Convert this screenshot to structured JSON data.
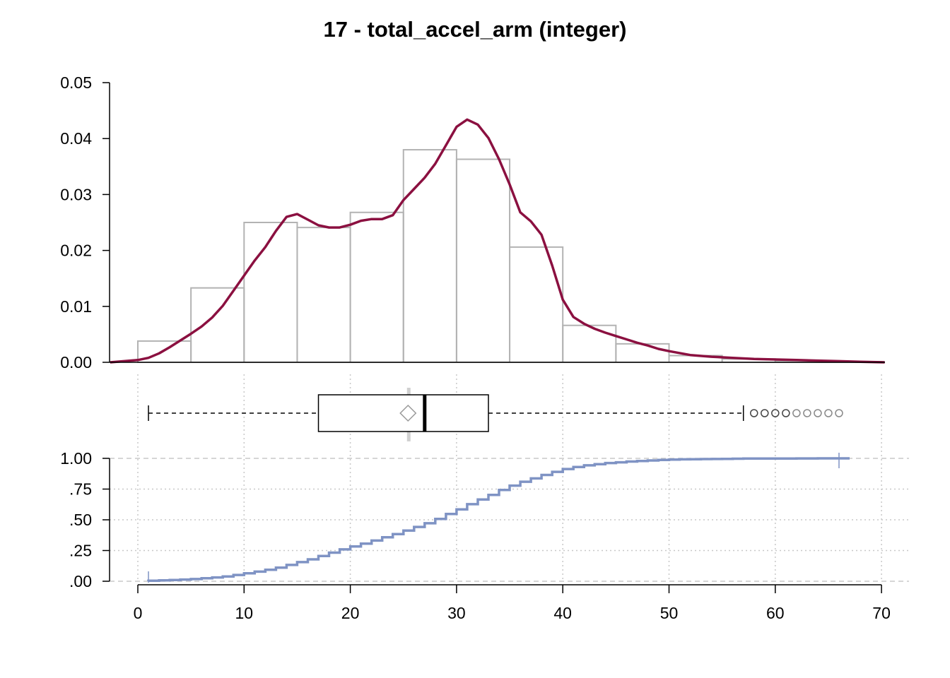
{
  "colors": {
    "density": "#8b1040",
    "histogram": "#b3b3b3",
    "ecdf": "#7f93c4",
    "grid": "#c8c8c8",
    "axis": "#000000",
    "mean_marker": "#999999"
  },
  "chart_data": {
    "type": "histogram",
    "title": "17 - total_accel_arm (integer)",
    "x_axis": {
      "range": [
        -2.6,
        70.5
      ],
      "ticks": [
        0,
        10,
        20,
        30,
        40,
        50,
        60,
        70
      ]
    },
    "histogram": {
      "ylim": [
        0,
        0.05
      ],
      "y_ticks": [
        "0.00",
        "0.01",
        "0.02",
        "0.03",
        "0.04",
        "0.05"
      ],
      "bin_width": 5,
      "bins": [
        {
          "start": 0,
          "end": 5,
          "density": 0.0038
        },
        {
          "start": 5,
          "end": 10,
          "density": 0.0133
        },
        {
          "start": 10,
          "end": 15,
          "density": 0.025
        },
        {
          "start": 15,
          "end": 20,
          "density": 0.0241
        },
        {
          "start": 20,
          "end": 25,
          "density": 0.0268
        },
        {
          "start": 25,
          "end": 30,
          "density": 0.038
        },
        {
          "start": 30,
          "end": 35,
          "density": 0.0363
        },
        {
          "start": 35,
          "end": 40,
          "density": 0.0206
        },
        {
          "start": 40,
          "end": 45,
          "density": 0.0066
        },
        {
          "start": 45,
          "end": 50,
          "density": 0.0033
        },
        {
          "start": 50,
          "end": 55,
          "density": 0.0012
        },
        {
          "start": 55,
          "end": 60,
          "density": 0.0006
        },
        {
          "start": 60,
          "end": 65,
          "density": 0.0003
        },
        {
          "start": 65,
          "end": 70,
          "density": 0.0001
        }
      ]
    },
    "density_curve": {
      "x": [
        -2.6,
        0,
        1,
        2,
        3,
        4,
        5,
        6,
        7,
        8,
        9,
        10,
        11,
        12,
        13,
        14,
        15,
        16,
        17,
        18,
        19,
        20,
        21,
        22,
        23,
        24,
        25,
        26,
        27,
        28,
        29,
        30,
        31,
        32,
        33,
        34,
        35,
        36,
        37,
        38,
        39,
        40,
        41,
        42,
        43,
        44,
        45,
        46,
        47,
        48,
        49,
        50,
        52,
        54,
        56,
        58,
        60,
        62,
        64,
        66,
        68,
        70.3
      ],
      "y": [
        0,
        0.0004,
        0.0008,
        0.0016,
        0.0027,
        0.0039,
        0.0051,
        0.0064,
        0.008,
        0.0101,
        0.0128,
        0.0155,
        0.0182,
        0.0206,
        0.0235,
        0.026,
        0.0265,
        0.0255,
        0.0245,
        0.0241,
        0.0241,
        0.0246,
        0.0253,
        0.0256,
        0.0256,
        0.0263,
        0.029,
        0.031,
        0.033,
        0.0355,
        0.0388,
        0.0421,
        0.0434,
        0.0425,
        0.0401,
        0.0363,
        0.0318,
        0.0268,
        0.0252,
        0.0228,
        0.0173,
        0.0112,
        0.0081,
        0.0069,
        0.006,
        0.0053,
        0.0047,
        0.0041,
        0.0035,
        0.003,
        0.0024,
        0.002,
        0.0013,
        0.001,
        0.0008,
        0.0006,
        0.0005,
        0.0004,
        0.0003,
        0.0002,
        0.0001,
        0
      ]
    },
    "boxplot": {
      "whisker_low": 1,
      "q1": 17,
      "median": 27,
      "q3": 33,
      "whisker_high": 57,
      "mean": 25.5,
      "outliers": [
        58,
        59,
        60,
        61,
        62,
        63,
        64,
        65,
        66
      ]
    },
    "ecdf": {
      "ylim": [
        0,
        1
      ],
      "y_ticks": [
        {
          "value": 0,
          "label": ".00"
        },
        {
          "value": 0.25,
          "label": ".25"
        },
        {
          "value": 0.5,
          "label": ".50"
        },
        {
          "value": 0.75,
          "label": ".75"
        },
        {
          "value": 1,
          "label": "1.00"
        }
      ],
      "x": [
        1,
        2,
        3,
        4,
        5,
        6,
        7,
        8,
        9,
        10,
        11,
        12,
        13,
        14,
        15,
        16,
        17,
        18,
        19,
        20,
        21,
        22,
        23,
        24,
        25,
        26,
        27,
        28,
        29,
        30,
        31,
        32,
        33,
        34,
        35,
        36,
        37,
        38,
        39,
        40,
        41,
        42,
        43,
        44,
        45,
        46,
        47,
        48,
        49,
        50,
        51,
        52,
        53,
        54,
        55,
        56,
        57,
        58,
        59,
        60,
        61,
        62,
        63,
        64,
        65,
        66
      ],
      "y": [
        0.004,
        0.007,
        0.01,
        0.014,
        0.018,
        0.024,
        0.031,
        0.039,
        0.051,
        0.065,
        0.078,
        0.093,
        0.111,
        0.133,
        0.156,
        0.178,
        0.206,
        0.233,
        0.259,
        0.283,
        0.306,
        0.331,
        0.358,
        0.384,
        0.412,
        0.442,
        0.472,
        0.507,
        0.547,
        0.585,
        0.627,
        0.665,
        0.703,
        0.743,
        0.778,
        0.81,
        0.837,
        0.865,
        0.89,
        0.913,
        0.93,
        0.943,
        0.953,
        0.962,
        0.968,
        0.974,
        0.979,
        0.983,
        0.987,
        0.99,
        0.992,
        0.993,
        0.994,
        0.995,
        0.996,
        0.997,
        0.998,
        0.998,
        0.999,
        0.999,
        0.999,
        0.9995,
        0.9997,
        0.9998,
        0.9999,
        1
      ]
    }
  }
}
